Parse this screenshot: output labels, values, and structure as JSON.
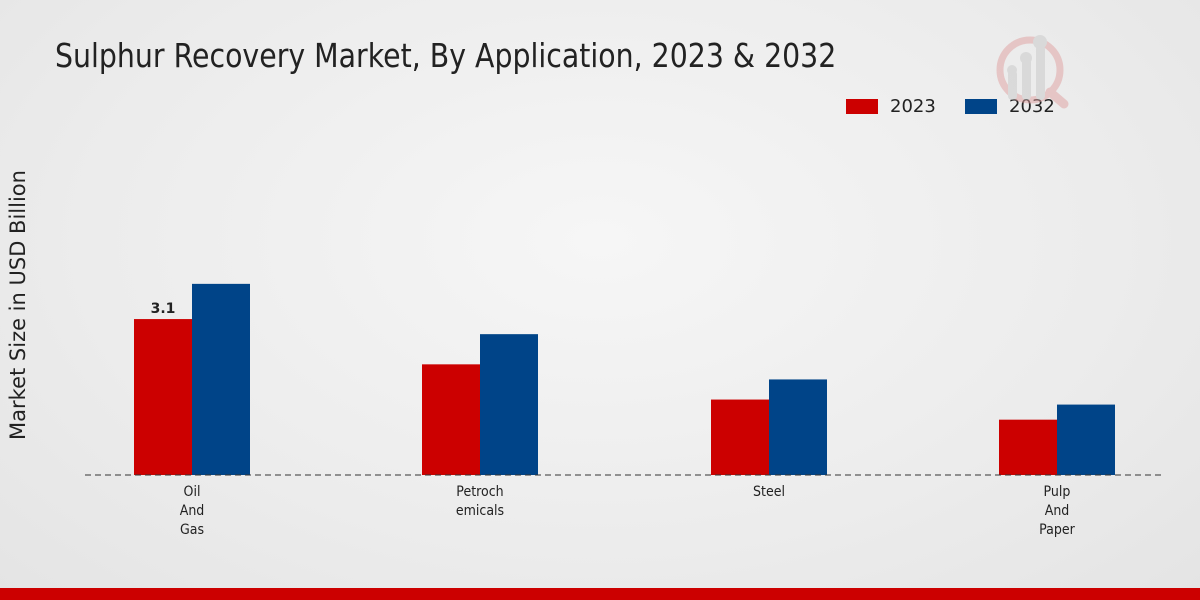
{
  "title": "Sulphur Recovery Market, By Application, 2023 & 2032",
  "chart_data": {
    "type": "bar",
    "title": "Sulphur Recovery Market, By Application, 2023 & 2032",
    "ylabel": "Market Size in USD Billion",
    "xlabel": "",
    "categories": [
      "Oil\nAnd\nGas",
      "Petroch\nemicals",
      "Steel",
      "Pulp\nAnd\nPaper"
    ],
    "series": [
      {
        "name": "2023",
        "color": "#cc0000",
        "values": [
          3.1,
          2.2,
          1.5,
          1.1
        ]
      },
      {
        "name": "2032",
        "color": "#004488",
        "values": [
          3.8,
          2.8,
          1.9,
          1.4
        ]
      }
    ],
    "data_labels": [
      {
        "series": "2023",
        "category_index": 0,
        "text": "3.1"
      }
    ],
    "ylim": [
      0,
      8.5
    ],
    "grid": false,
    "legend": "top-right"
  },
  "logo": {
    "icon": "magnifier-bar-chart-logo"
  }
}
